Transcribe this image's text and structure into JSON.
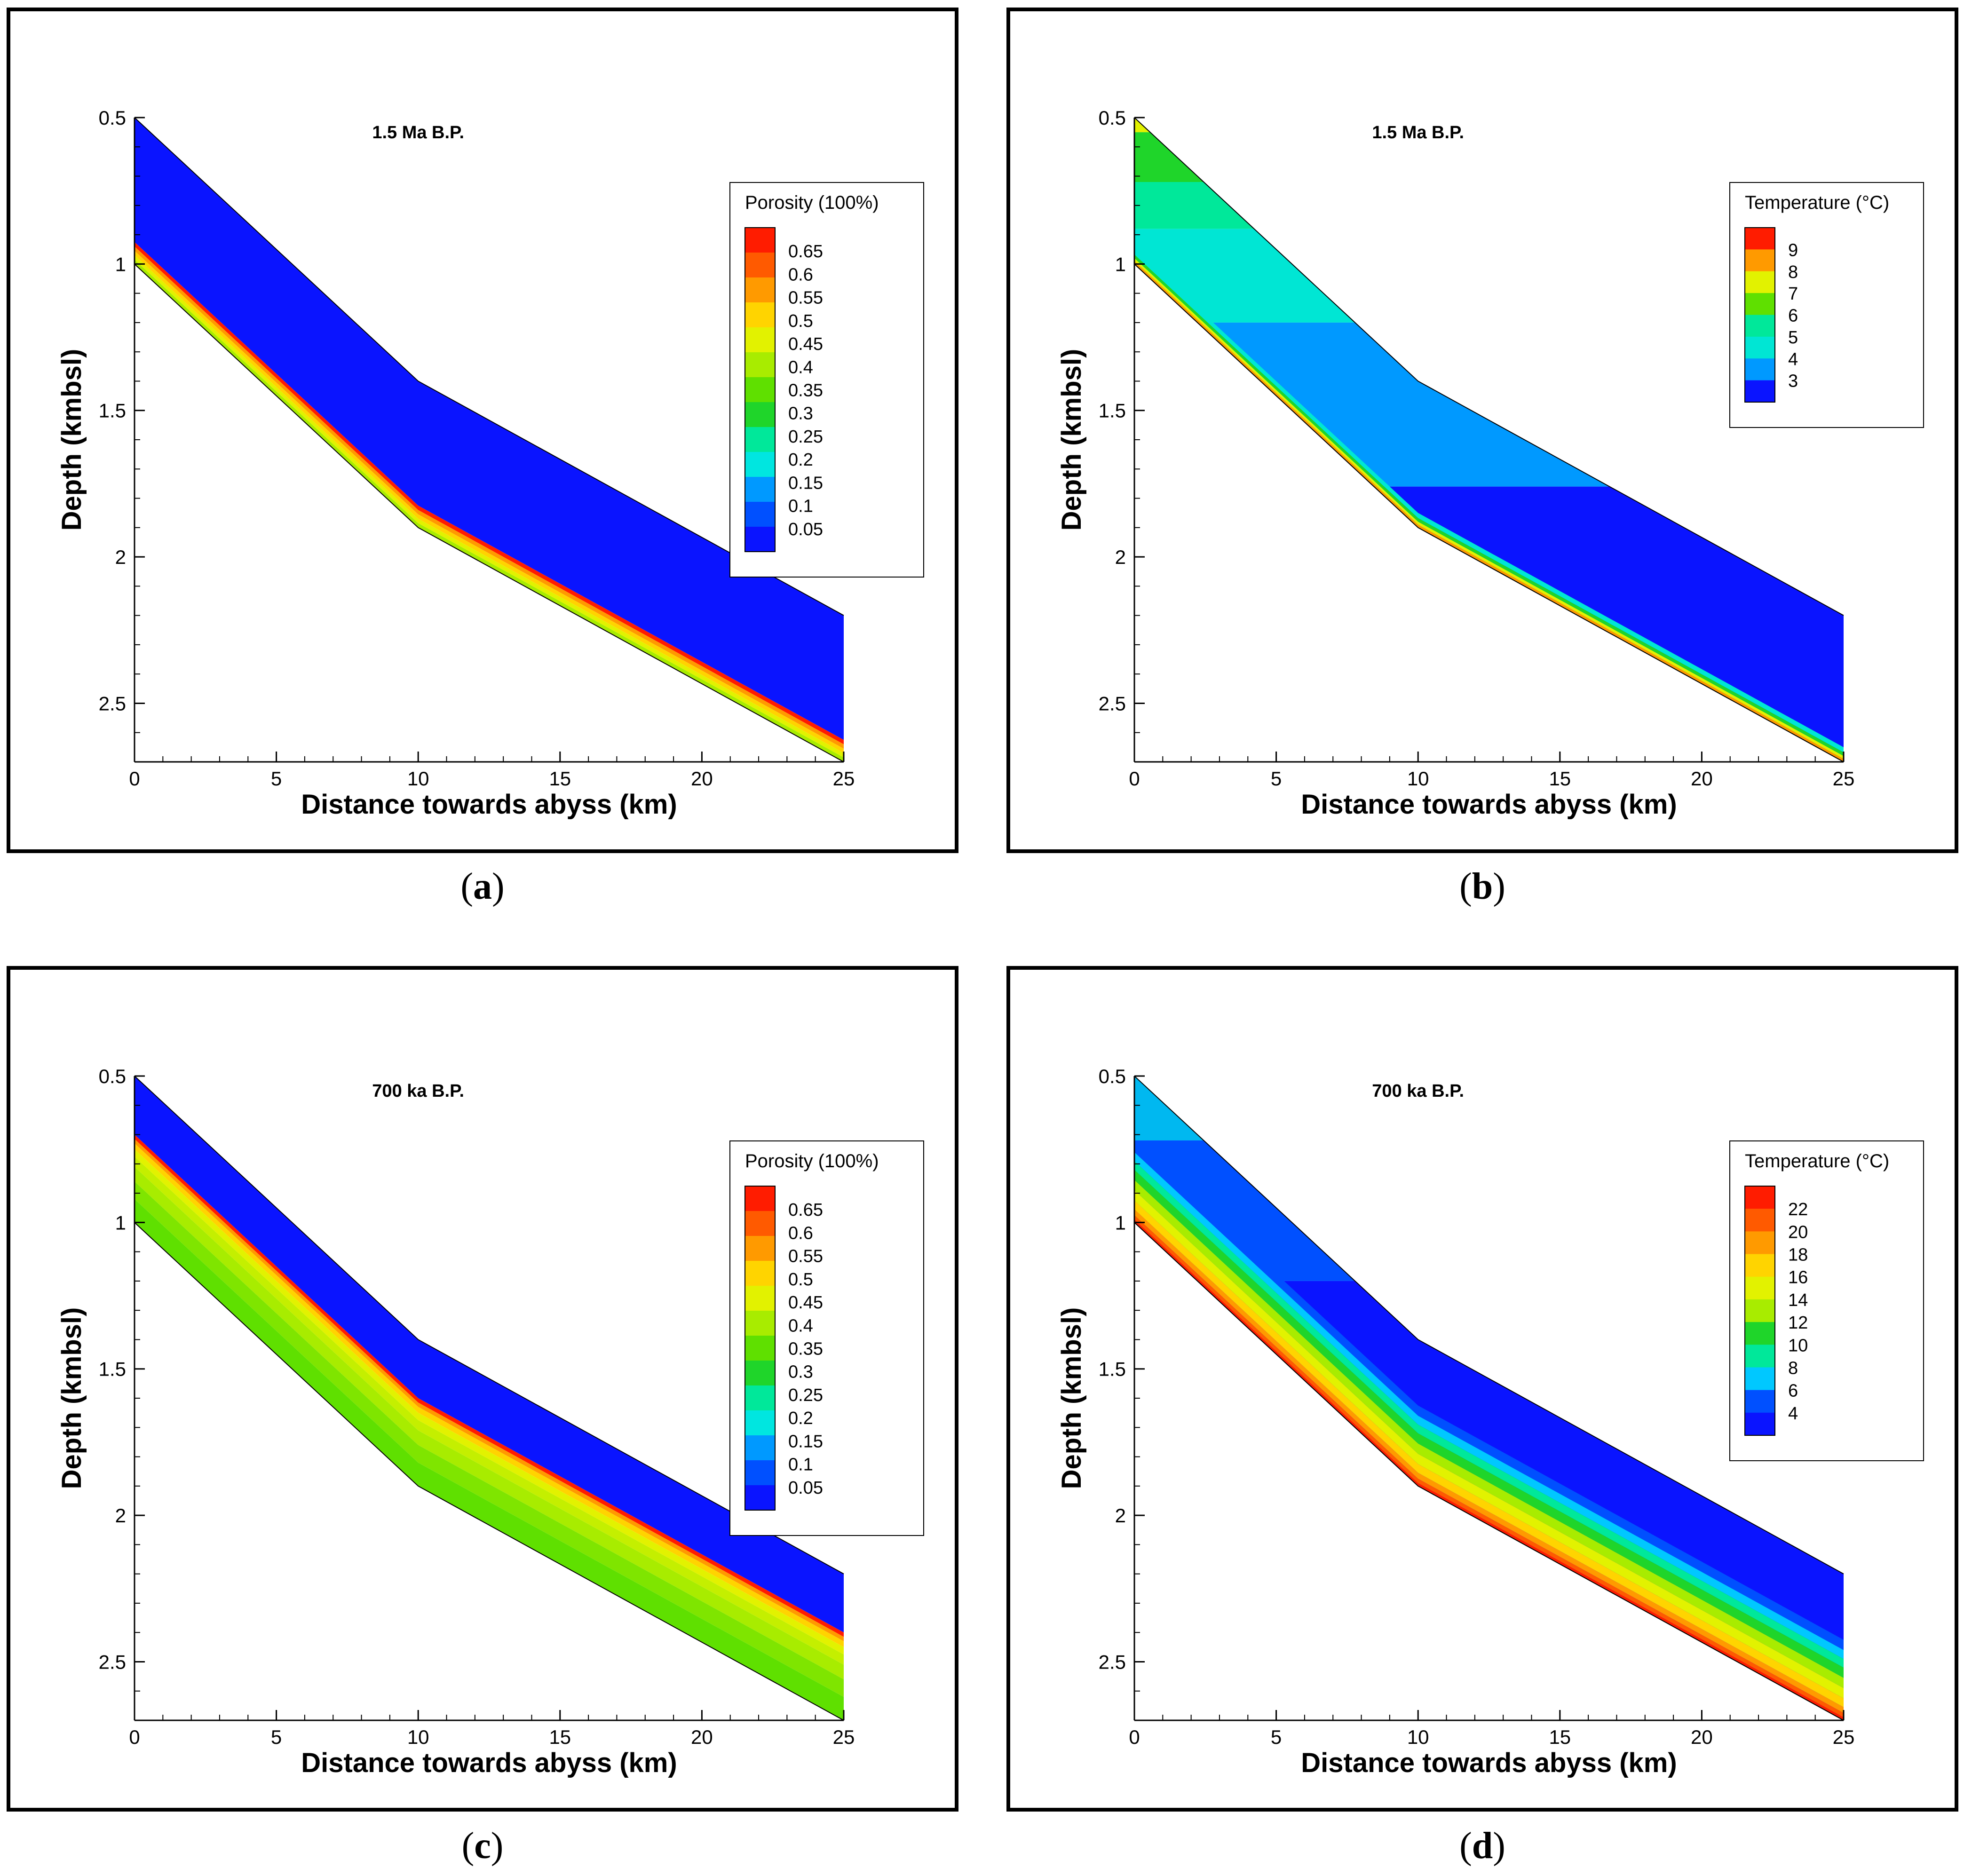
{
  "captions": [
    "a",
    "b",
    "c",
    "d"
  ],
  "chart_data": [
    {
      "type": "contour",
      "panel": "a",
      "title": "1.5 Ma B.P.",
      "xlabel": "Distance towards abyss (km)",
      "ylabel": "Depth (kmbsl)",
      "xlim": [
        0,
        25
      ],
      "ylim": [
        2.7,
        0.5
      ],
      "xticks": [
        "0",
        "5",
        "10",
        "15",
        "20",
        "25"
      ],
      "yticks": [
        "0.5",
        "1",
        "1.5",
        "2",
        "2.5"
      ],
      "top_profile": {
        "x": [
          0,
          10,
          25
        ],
        "depth": [
          0.5,
          1.4,
          2.2
        ]
      },
      "bottom_profile": {
        "x": [
          0,
          10,
          25
        ],
        "depth": [
          1.0,
          1.9,
          2.7
        ]
      },
      "legend": {
        "title": "Porosity (100%)",
        "levels": [
          "0.65",
          "0.6",
          "0.55",
          "0.5",
          "0.45",
          "0.4",
          "0.35",
          "0.3",
          "0.25",
          "0.2",
          "0.15",
          "0.1",
          "0.05"
        ],
        "colors": [
          "#ff1c00",
          "#ff5a00",
          "#ff9a00",
          "#ffd400",
          "#e2f200",
          "#a8ec00",
          "#5fe000",
          "#1fd52a",
          "#00e89a",
          "#00e6e0",
          "#0099ff",
          "#0050ff",
          "#0a14ff"
        ]
      },
      "bands": [
        {
          "from": 0.0,
          "to": 0.85,
          "color": "#0a14ff"
        },
        {
          "from": 0.85,
          "to": 0.88,
          "color": "#ff1c00"
        },
        {
          "from": 0.88,
          "to": 0.91,
          "color": "#ff9a00"
        },
        {
          "from": 0.91,
          "to": 0.94,
          "color": "#ffd400"
        },
        {
          "from": 0.94,
          "to": 0.97,
          "color": "#e2f200"
        },
        {
          "from": 0.97,
          "to": 1.0,
          "color": "#a8ec00"
        }
      ]
    },
    {
      "type": "contour",
      "panel": "b",
      "title": "1.5 Ma B.P.",
      "xlabel": "Distance towards abyss (km)",
      "ylabel": "Depth (kmbsl)",
      "xlim": [
        0,
        25
      ],
      "ylim": [
        2.7,
        0.5
      ],
      "xticks": [
        "0",
        "5",
        "10",
        "15",
        "20",
        "25"
      ],
      "yticks": [
        "0.5",
        "1",
        "1.5",
        "2",
        "2.5"
      ],
      "top_profile": {
        "x": [
          0,
          10,
          25
        ],
        "depth": [
          0.5,
          1.4,
          2.2
        ]
      },
      "bottom_profile": {
        "x": [
          0,
          10,
          25
        ],
        "depth": [
          1.0,
          1.9,
          2.7
        ]
      },
      "legend": {
        "title": "Temperature (°C)",
        "levels": [
          "9",
          "8",
          "7",
          "6",
          "5",
          "4",
          "3"
        ],
        "colors": [
          "#ff1c00",
          "#ff9a00",
          "#e2f200",
          "#5fe000",
          "#00e89a",
          "#00e6d4",
          "#0099ff",
          "#0a14ff"
        ]
      },
      "depth_bands": [
        {
          "from": 0.5,
          "to": 0.55,
          "color": "#e2f200"
        },
        {
          "from": 0.55,
          "to": 0.72,
          "color": "#1fd52a"
        },
        {
          "from": 0.72,
          "to": 0.88,
          "color": "#00e89a"
        },
        {
          "from": 0.88,
          "to": 1.2,
          "color": "#00e6d4"
        },
        {
          "from": 1.2,
          "to": 1.76,
          "color": "#0099ff"
        },
        {
          "from": 1.76,
          "to": 2.7,
          "color": "#0a14ff"
        }
      ],
      "bands": [
        {
          "from": 0.9,
          "to": 0.935,
          "color": "#00e6d4"
        },
        {
          "from": 0.935,
          "to": 0.96,
          "color": "#1fd52a"
        },
        {
          "from": 0.96,
          "to": 0.98,
          "color": "#e2f200"
        },
        {
          "from": 0.98,
          "to": 1.0,
          "color": "#ff9a00"
        }
      ]
    },
    {
      "type": "contour",
      "panel": "c",
      "title": "700 ka B.P.",
      "xlabel": "Distance towards abyss (km)",
      "ylabel": "Depth (kmbsl)",
      "xlim": [
        0,
        25
      ],
      "ylim": [
        2.7,
        0.5
      ],
      "xticks": [
        "0",
        "5",
        "10",
        "15",
        "20",
        "25"
      ],
      "yticks": [
        "0.5",
        "1",
        "1.5",
        "2",
        "2.5"
      ],
      "top_profile": {
        "x": [
          0,
          10,
          25
        ],
        "depth": [
          0.5,
          1.4,
          2.2
        ]
      },
      "bottom_profile": {
        "x": [
          0,
          10,
          25
        ],
        "depth": [
          1.0,
          1.9,
          2.7
        ]
      },
      "legend": {
        "title": "Porosity (100%)",
        "levels": [
          "0.65",
          "0.6",
          "0.55",
          "0.5",
          "0.45",
          "0.4",
          "0.35",
          "0.3",
          "0.25",
          "0.2",
          "0.15",
          "0.1",
          "0.05"
        ],
        "colors": [
          "#ff1c00",
          "#ff5a00",
          "#ff9a00",
          "#ffd400",
          "#e2f200",
          "#a8ec00",
          "#5fe000",
          "#1fd52a",
          "#00e89a",
          "#00e6e0",
          "#0099ff",
          "#0050ff",
          "#0a14ff"
        ]
      },
      "bands": [
        {
          "from": 0.0,
          "to": 0.4,
          "color": "#0a14ff"
        },
        {
          "from": 0.4,
          "to": 0.43,
          "color": "#ff1c00"
        },
        {
          "from": 0.43,
          "to": 0.46,
          "color": "#ff9a00"
        },
        {
          "from": 0.46,
          "to": 0.5,
          "color": "#ffd400"
        },
        {
          "from": 0.5,
          "to": 0.55,
          "color": "#e2f200"
        },
        {
          "from": 0.55,
          "to": 0.62,
          "color": "#c4ef00"
        },
        {
          "from": 0.62,
          "to": 0.72,
          "color": "#a8ec00"
        },
        {
          "from": 0.72,
          "to": 0.84,
          "color": "#7fe500"
        },
        {
          "from": 0.84,
          "to": 1.0,
          "color": "#5fe000"
        }
      ]
    },
    {
      "type": "contour",
      "panel": "d",
      "title": "700 ka B.P.",
      "xlabel": "Distance towards abyss (km)",
      "ylabel": "Depth (kmbsl)",
      "xlim": [
        0,
        25
      ],
      "ylim": [
        2.7,
        0.5
      ],
      "xticks": [
        "0",
        "5",
        "10",
        "15",
        "20",
        "25"
      ],
      "yticks": [
        "0.5",
        "1",
        "1.5",
        "2",
        "2.5"
      ],
      "top_profile": {
        "x": [
          0,
          10,
          25
        ],
        "depth": [
          0.5,
          1.4,
          2.2
        ]
      },
      "bottom_profile": {
        "x": [
          0,
          10,
          25
        ],
        "depth": [
          1.0,
          1.9,
          2.7
        ]
      },
      "legend": {
        "title": "Temperature (°C)",
        "levels": [
          "22",
          "20",
          "18",
          "16",
          "14",
          "12",
          "10",
          "8",
          "6",
          "4"
        ],
        "colors": [
          "#ff1c00",
          "#ff5a00",
          "#ff9a00",
          "#ffd400",
          "#e2f200",
          "#a8ec00",
          "#1fd52a",
          "#00e89a",
          "#00c8ff",
          "#0050ff",
          "#0a14ff"
        ]
      },
      "depth_bands": [
        {
          "from": 0.5,
          "to": 0.72,
          "color": "#00b8f0"
        },
        {
          "from": 0.72,
          "to": 1.2,
          "color": "#0050ff"
        },
        {
          "from": 1.2,
          "to": 2.7,
          "color": "#0a14ff"
        }
      ],
      "bands": [
        {
          "from": 0.0,
          "to": 0.45,
          "color": "transparent"
        },
        {
          "from": 0.45,
          "to": 0.52,
          "color": "#0050ff"
        },
        {
          "from": 0.52,
          "to": 0.58,
          "color": "#00c8ff"
        },
        {
          "from": 0.58,
          "to": 0.64,
          "color": "#00e89a"
        },
        {
          "from": 0.64,
          "to": 0.71,
          "color": "#1fd52a"
        },
        {
          "from": 0.71,
          "to": 0.78,
          "color": "#a8ec00"
        },
        {
          "from": 0.78,
          "to": 0.85,
          "color": "#e2f200"
        },
        {
          "from": 0.85,
          "to": 0.91,
          "color": "#ffd400"
        },
        {
          "from": 0.91,
          "to": 0.95,
          "color": "#ff9a00"
        },
        {
          "from": 0.95,
          "to": 0.98,
          "color": "#ff5a00"
        },
        {
          "from": 0.98,
          "to": 1.0,
          "color": "#ff1c00"
        }
      ]
    }
  ]
}
